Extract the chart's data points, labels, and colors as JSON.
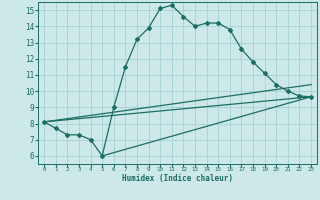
{
  "xlabel": "Humidex (Indice chaleur)",
  "xlim": [
    -0.5,
    23.5
  ],
  "ylim": [
    5.5,
    15.5
  ],
  "xticks": [
    0,
    1,
    2,
    3,
    4,
    5,
    6,
    7,
    8,
    9,
    10,
    11,
    12,
    13,
    14,
    15,
    16,
    17,
    18,
    19,
    20,
    21,
    22,
    23
  ],
  "yticks": [
    6,
    7,
    8,
    9,
    10,
    11,
    12,
    13,
    14,
    15
  ],
  "bg_color": "#cce8e8",
  "grid_color": "#aad4d4",
  "line_color": "#1a6e62",
  "curves": [
    {
      "x": [
        0,
        1,
        2,
        3,
        4,
        5,
        6,
        7,
        8,
        9,
        10,
        11,
        12,
        13,
        14,
        15,
        16,
        17,
        18,
        19,
        20,
        21,
        22,
        23
      ],
      "y": [
        8.1,
        7.7,
        7.3,
        7.3,
        7.0,
        6.0,
        9.0,
        11.5,
        13.2,
        13.9,
        15.1,
        15.3,
        14.6,
        14.0,
        14.2,
        14.2,
        13.8,
        12.6,
        11.8,
        11.1,
        10.4,
        10.0,
        9.7,
        9.65
      ],
      "has_markers": true
    },
    {
      "x": [
        0,
        23
      ],
      "y": [
        8.1,
        10.4
      ],
      "has_markers": false
    },
    {
      "x": [
        0,
        23
      ],
      "y": [
        8.1,
        9.65
      ],
      "has_markers": false
    },
    {
      "x": [
        5,
        23
      ],
      "y": [
        6.0,
        9.65
      ],
      "has_markers": false
    }
  ]
}
